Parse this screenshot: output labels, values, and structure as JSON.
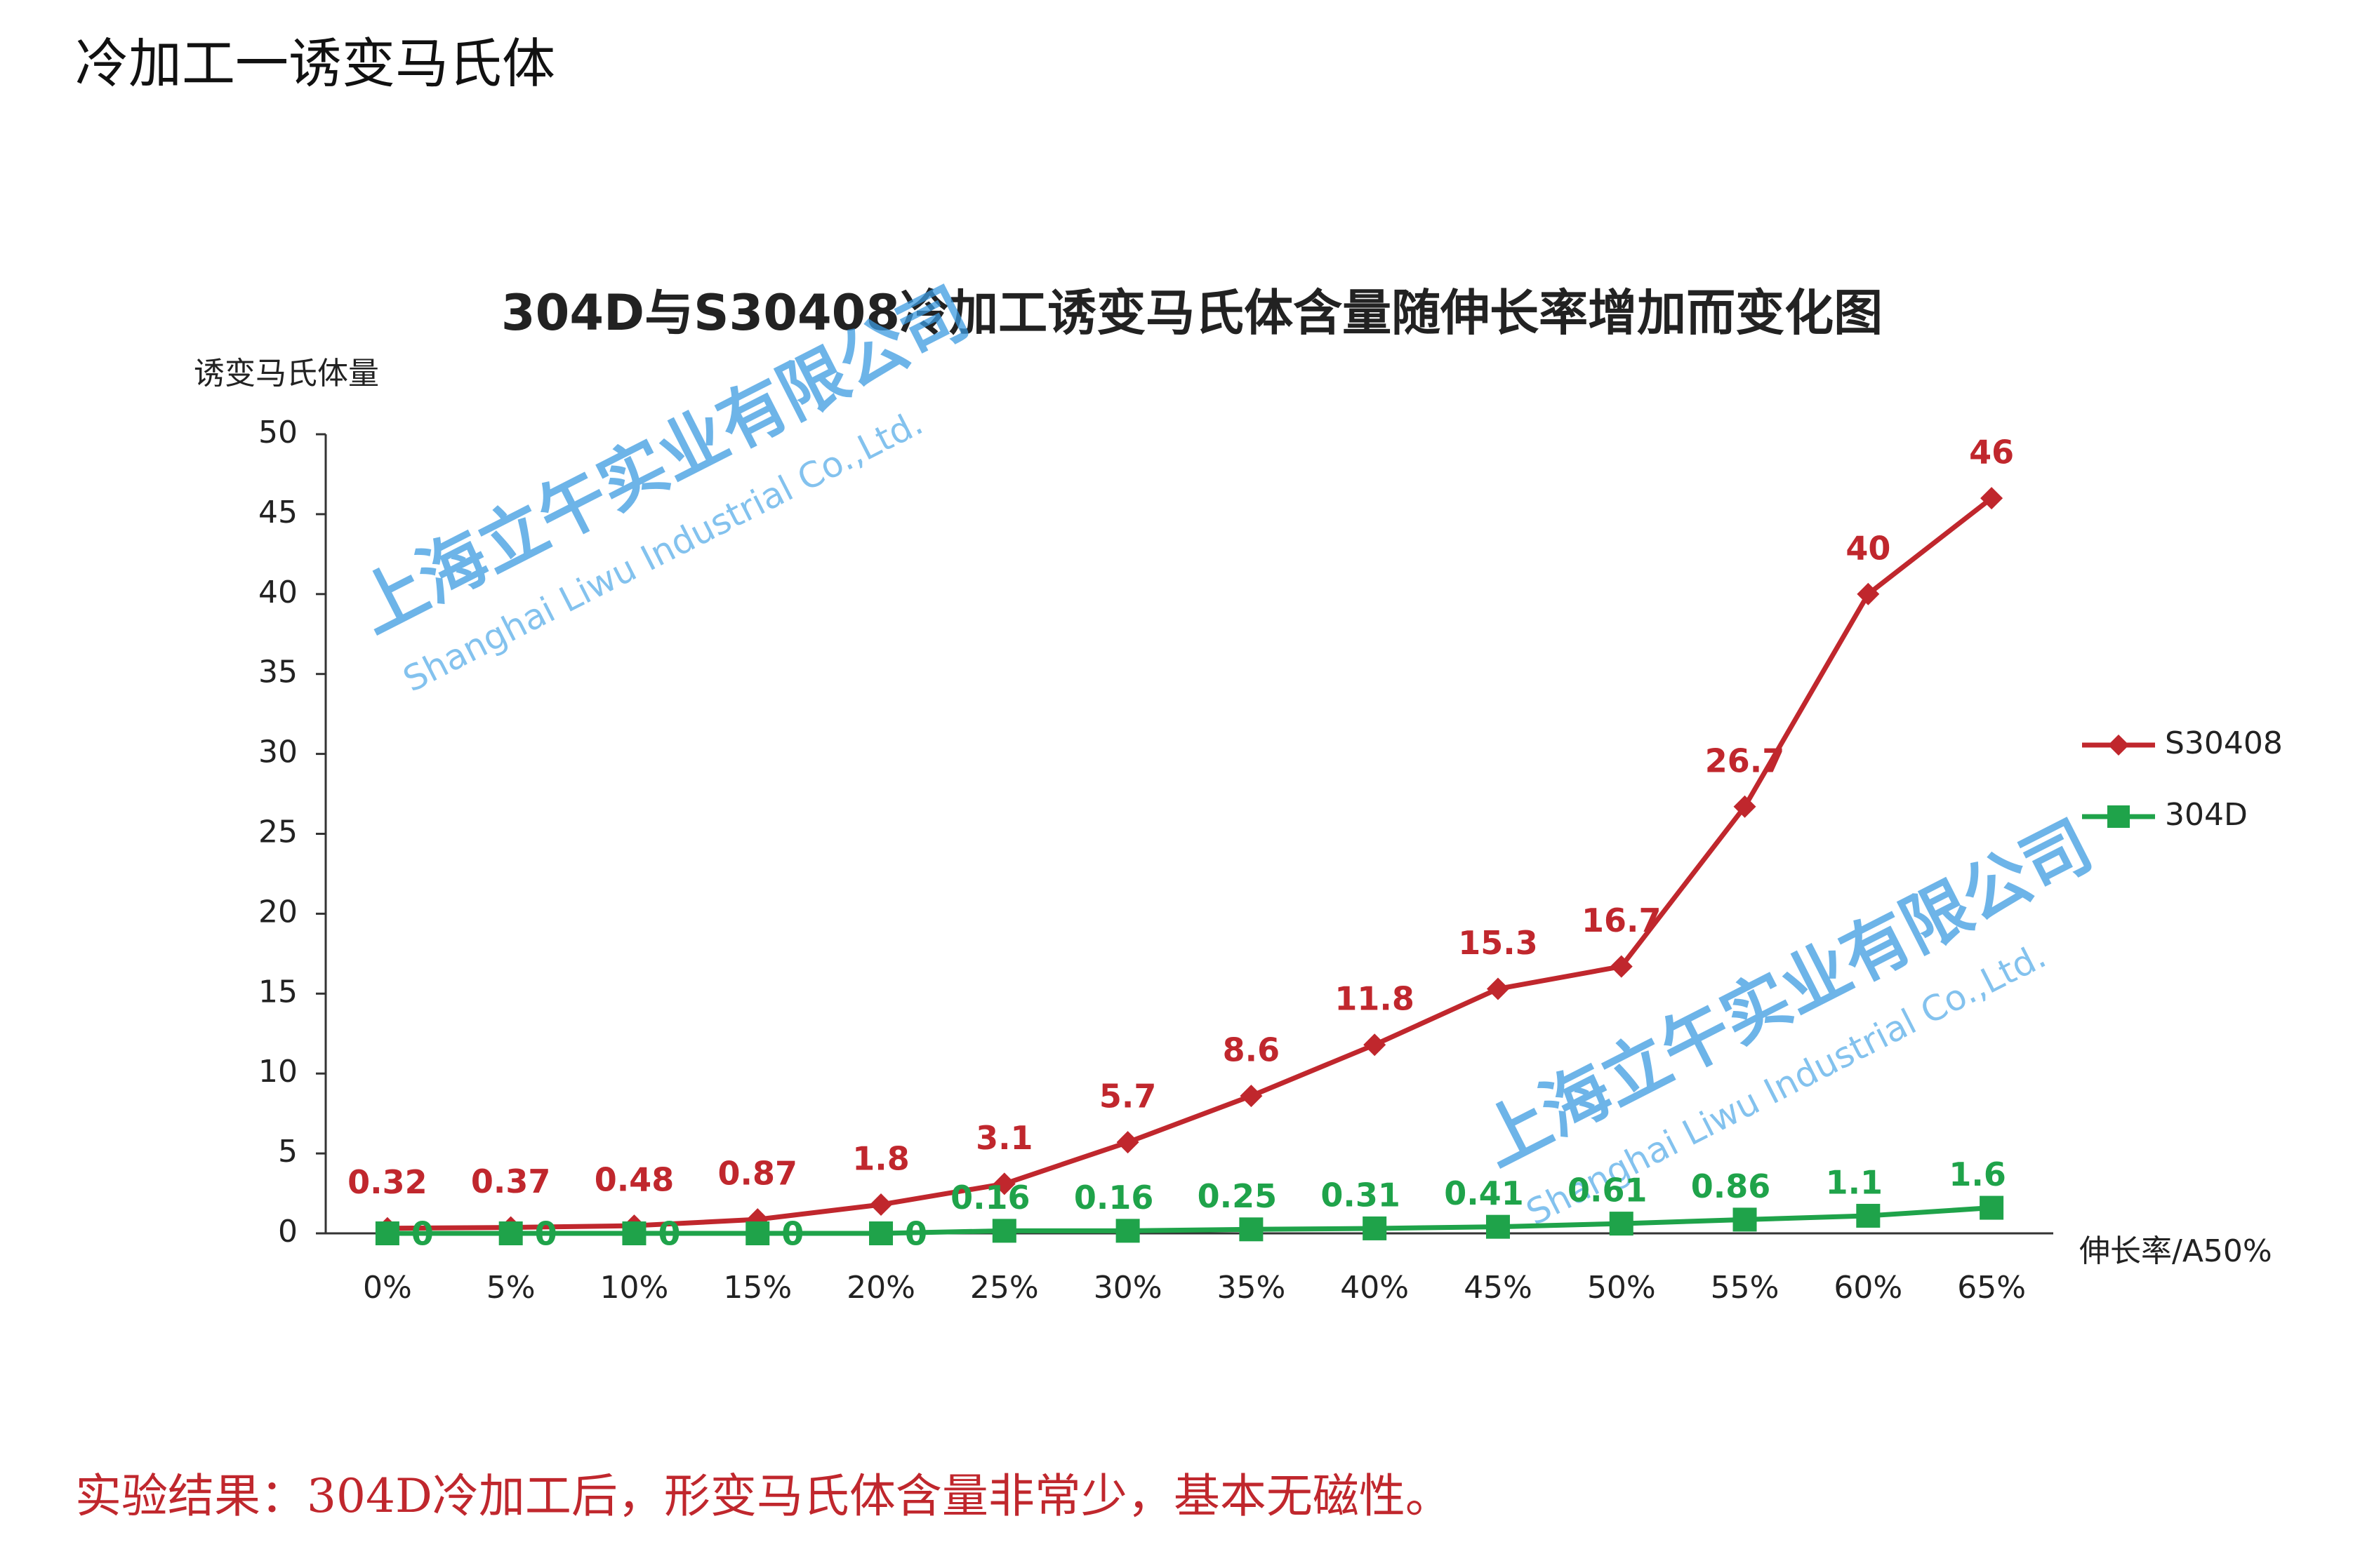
{
  "heading": "冷加工一诱变马氏体",
  "footer": "实验结果：304D冷加工后，形变马氏体含量非常少，基本无磁性。",
  "watermark": {
    "company": "上海立午实业有限公司",
    "english": "Shanghai Liwu Industrial Co.,Ltd."
  },
  "chart_data": {
    "type": "line",
    "title": "304D与S30408冷加工诱变马氏体含量随伸长率增加而变化图",
    "y_label": "诱变马氏体量",
    "x_label": "伸长率/A50%",
    "categories": [
      "0%",
      "5%",
      "10%",
      "15%",
      "20%",
      "25%",
      "30%",
      "35%",
      "40%",
      "45%",
      "50%",
      "55%",
      "60%",
      "65%"
    ],
    "series": [
      {
        "name": "S30408",
        "color": "#c0272d",
        "marker": "diamond",
        "values": [
          0.32,
          0.37,
          0.48,
          0.87,
          1.8,
          3.1,
          5.7,
          8.6,
          11.8,
          15.3,
          16.7,
          26.7,
          40,
          46
        ]
      },
      {
        "name": "304D",
        "color": "#1fa34a",
        "marker": "square",
        "values": [
          0,
          0,
          0,
          0,
          0,
          0.16,
          0.16,
          0.25,
          0.31,
          0.41,
          0.61,
          0.86,
          1.1,
          1.6
        ]
      }
    ],
    "ylim": [
      0,
      50
    ],
    "yticks": [
      0,
      5,
      10,
      15,
      20,
      25,
      30,
      35,
      40,
      45,
      50
    ],
    "grid": false,
    "legend": "right"
  }
}
